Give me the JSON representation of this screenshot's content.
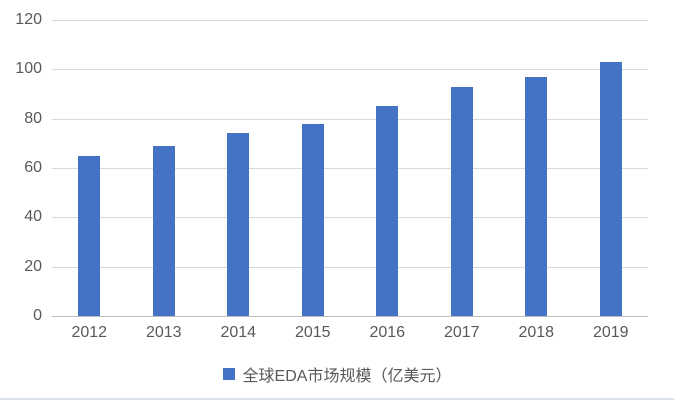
{
  "chart_data": {
    "type": "bar",
    "title": "",
    "categories": [
      "2012",
      "2013",
      "2014",
      "2015",
      "2016",
      "2017",
      "2018",
      "2019"
    ],
    "series": [
      {
        "name": "全球EDA市场规模（亿美元）",
        "values": [
          65,
          69,
          74,
          78,
          85,
          93,
          97,
          103
        ]
      }
    ],
    "xlabel": "",
    "ylabel": "",
    "ylim": [
      0,
      120
    ],
    "yticks": [
      0,
      20,
      40,
      60,
      80,
      100,
      120
    ],
    "grid": "horizontal",
    "legend_position": "bottom",
    "colors": {
      "bar": "#4472C4",
      "gridline": "#D9D9D9",
      "axis_line": "#BFBFBF",
      "tick_label": "#595959",
      "legend_text": "#595959",
      "bottom_divider": "#D9E0EA",
      "background": "#FFFFFF"
    }
  }
}
